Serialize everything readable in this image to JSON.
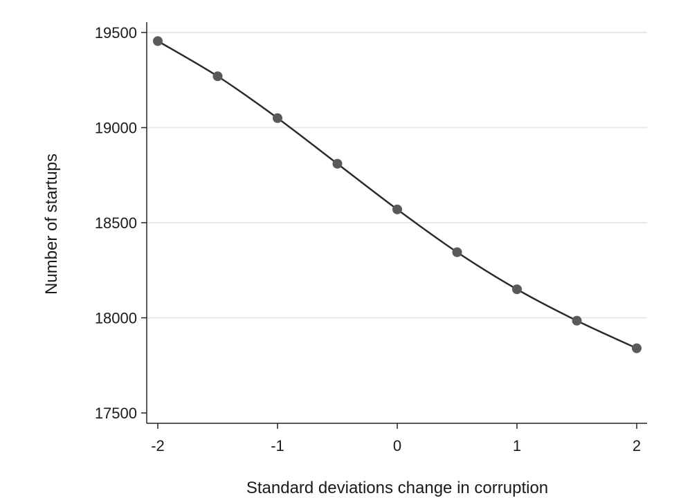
{
  "chart_data": {
    "type": "line",
    "title": "",
    "xlabel": "Standard deviations change in corruption",
    "ylabel": "Number of startups",
    "xlim": [
      -2,
      2
    ],
    "ylim": [
      17500,
      19500
    ],
    "x_ticks": [
      -2,
      -1,
      0,
      1,
      2
    ],
    "y_ticks": [
      17500,
      18000,
      18500,
      19000,
      19500
    ],
    "grid": true,
    "series": [
      {
        "x": [
          -2,
          -1.5,
          -1,
          -0.5,
          0,
          0.5,
          1,
          1.5,
          2
        ],
        "y": [
          19455,
          19270,
          19050,
          18810,
          18570,
          18345,
          18150,
          17985,
          17840
        ]
      }
    ],
    "colors": {
      "line": "#2b2b2b",
      "marker": "#5a5a5a",
      "grid": "#e8e8e8"
    }
  }
}
